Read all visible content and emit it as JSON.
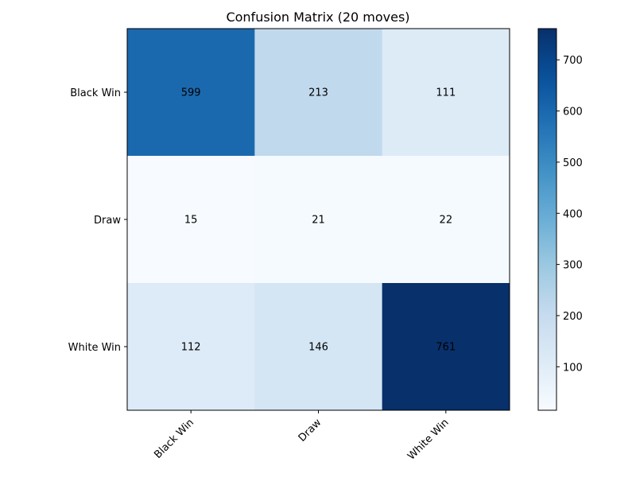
{
  "chart_data": {
    "type": "heatmap",
    "title": "Confusion Matrix (20 moves)",
    "xlabel": "",
    "ylabel": "",
    "x_categories": [
      "Black Win",
      "Draw",
      "White Win"
    ],
    "y_categories": [
      "Black Win",
      "Draw",
      "White Win"
    ],
    "values": [
      [
        599,
        213,
        111
      ],
      [
        15,
        21,
        22
      ],
      [
        112,
        146,
        761
      ]
    ],
    "colormap": "Blues",
    "colorbar": {
      "min": 15,
      "max": 761,
      "ticks": [
        100,
        200,
        300,
        400,
        500,
        600,
        700
      ]
    },
    "text_color": "#000000",
    "grid": false
  }
}
